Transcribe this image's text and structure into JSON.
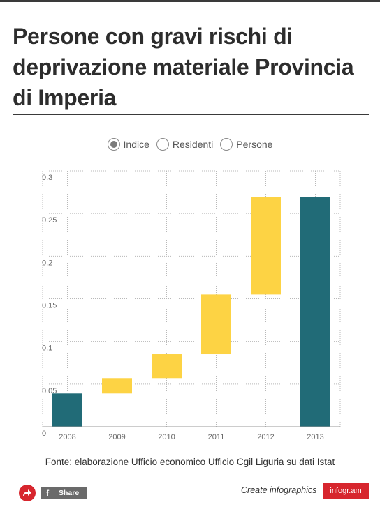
{
  "title": "Persone con gravi rischi di deprivazione materiale Provincia di Imperia",
  "legend": {
    "options": [
      {
        "label": "Indice",
        "selected": true
      },
      {
        "label": "Residenti",
        "selected": false
      },
      {
        "label": "Persone",
        "selected": false
      }
    ]
  },
  "chart_data": {
    "type": "waterfall",
    "categories": [
      "2008",
      "2009",
      "2010",
      "2011",
      "2012",
      "2013"
    ],
    "segments": [
      {
        "category": "2008",
        "start": 0,
        "end": 0.039,
        "kind": "total"
      },
      {
        "category": "2009",
        "start": 0.039,
        "end": 0.057,
        "kind": "increase"
      },
      {
        "category": "2010",
        "start": 0.057,
        "end": 0.085,
        "kind": "increase"
      },
      {
        "category": "2011",
        "start": 0.085,
        "end": 0.155,
        "kind": "increase"
      },
      {
        "category": "2012",
        "start": 0.155,
        "end": 0.269,
        "kind": "increase"
      },
      {
        "category": "2013",
        "start": 0,
        "end": 0.269,
        "kind": "total"
      }
    ],
    "yticks": [
      "0",
      "0.05",
      "0.1",
      "0.15",
      "0.2",
      "0.25",
      "0.3"
    ],
    "ylim": [
      0,
      0.3
    ],
    "grid": true,
    "colors": {
      "total": "#216b77",
      "increase": "#fdd344",
      "grid": "#b8b8b8"
    }
  },
  "source": "Fonte: elaborazione Ufficio economico Ufficio Cgil Liguria su dati Istat",
  "footer": {
    "share_label": "Share",
    "fb_glyph": "f",
    "create_label": "Create infographics",
    "brand": "infogr.am",
    "share_icon": "share-arrow-icon"
  }
}
